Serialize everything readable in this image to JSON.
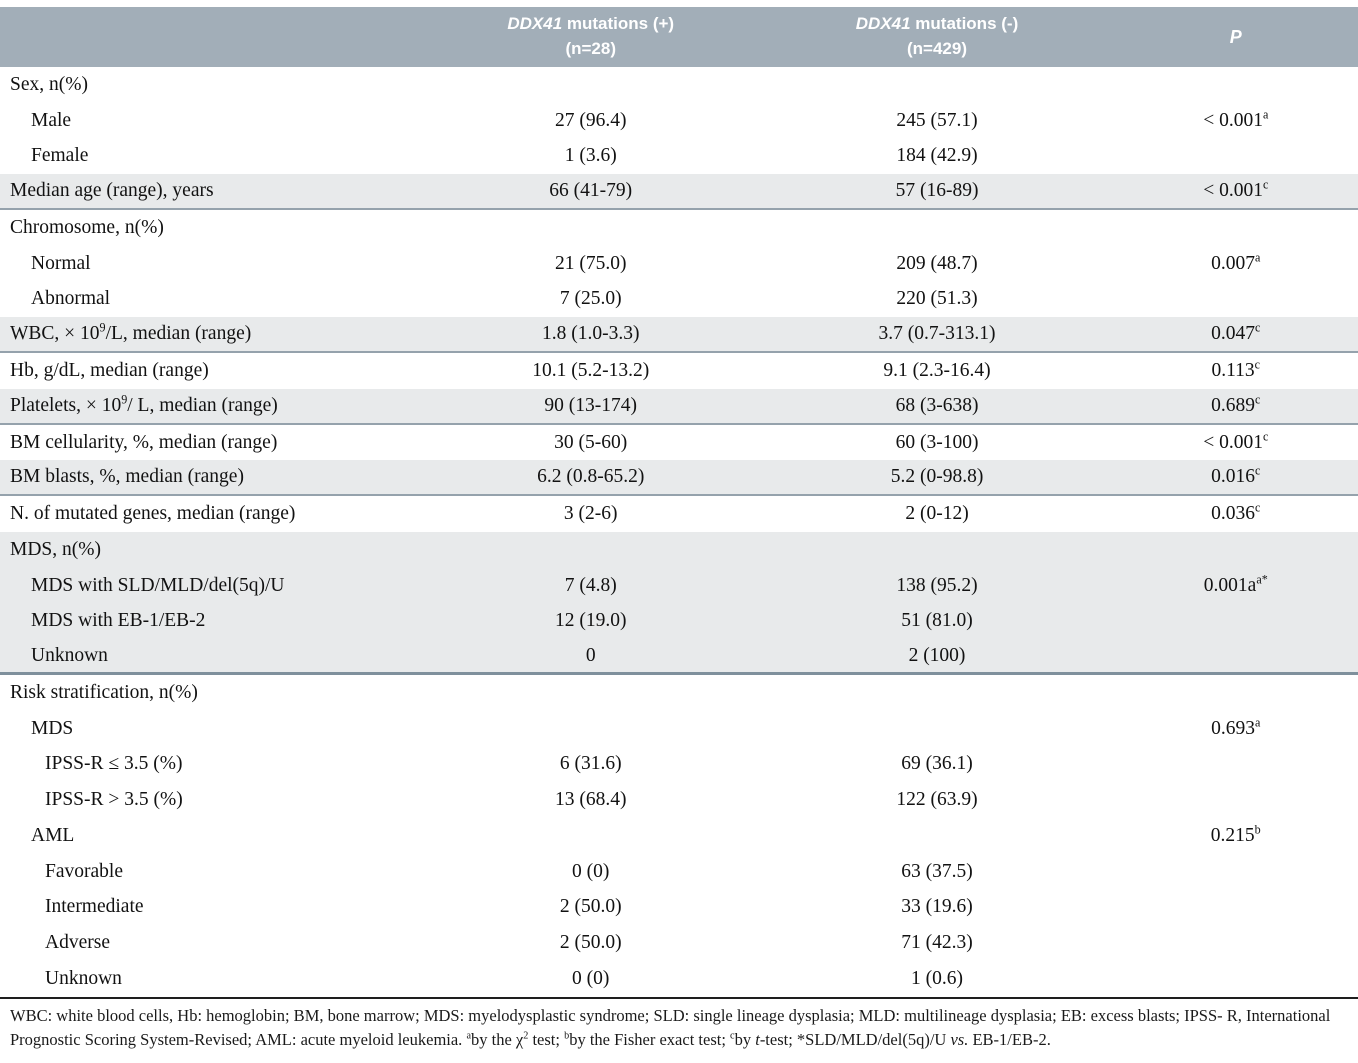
{
  "colors": {
    "header_bg": "#a2aeb8",
    "header_text": "#ffffff",
    "band_bg": "#e8eaeb",
    "band_border": "#95a2ac",
    "block_end_border": "#7f909c",
    "table_bottom_border": "#1e1e1e",
    "body_text": "#121212"
  },
  "header": {
    "col2": {
      "gene": "DDX41",
      "rest": " mutations (+)",
      "n": "(n=28)"
    },
    "col3": {
      "gene": "DDX41",
      "rest": " mutations (-)",
      "n": "(n=429)"
    },
    "p": "P"
  },
  "table": {
    "rows": [
      {
        "label": "Sex, n(%)",
        "indent": 0,
        "c1": "",
        "c2": "",
        "p": ""
      },
      {
        "label": "Male",
        "indent": 1,
        "c1": "27 (96.4)",
        "c2": "245 (57.1)",
        "p": "< 0.001",
        "p_sup": "a"
      },
      {
        "label": "Female",
        "indent": 1,
        "c1": "1 (3.6)",
        "c2": "184 (42.9)",
        "p": ""
      },
      {
        "label": "Median age (range), years",
        "indent": 0,
        "c1": "66 (41-79)",
        "c2": "57 (16-89)",
        "p": "< 0.001",
        "p_sup": "c",
        "shade": "band"
      },
      {
        "label": "Chromosome, n(%)",
        "indent": 0,
        "c1": "",
        "c2": "",
        "p": ""
      },
      {
        "label": "Normal",
        "indent": 1,
        "c1": "21 (75.0)",
        "c2": "209 (48.7)",
        "p": "0.007",
        "p_sup": "a"
      },
      {
        "label": "Abnormal",
        "indent": 1,
        "c1": "7 (25.0)",
        "c2": "220 (51.3)",
        "p": ""
      },
      {
        "label_pre": "WBC, × 10",
        "label_sup": "9",
        "label_post": "/L, median (range)",
        "indent": 0,
        "c1": "1.8 (1.0-3.3)",
        "c2": "3.7 (0.7-313.1)",
        "p": "0.047",
        "p_sup": "c",
        "shade": "band"
      },
      {
        "label": "Hb, g/dL, median (range)",
        "indent": 0,
        "c1": "10.1 (5.2-13.2)",
        "c2": "9.1 (2.3-16.4)",
        "p": "0.113",
        "p_sup": "c"
      },
      {
        "label_pre": "Platelets, × 10",
        "label_sup": "9",
        "label_post": "/ L, median (range)",
        "indent": 0,
        "c1": "90 (13-174)",
        "c2": "68 (3-638)",
        "p": "0.689",
        "p_sup": "c",
        "shade": "band"
      },
      {
        "label": "BM cellularity, %, median (range)",
        "indent": 0,
        "c1": "30 (5-60)",
        "c2": "60 (3-100)",
        "p": "< 0.001",
        "p_sup": "c"
      },
      {
        "label": "BM blasts, %, median (range)",
        "indent": 0,
        "c1": "6.2 (0.8-65.2)",
        "c2": "5.2 (0-98.8)",
        "p": "0.016",
        "p_sup": "c",
        "shade": "band"
      },
      {
        "label": "N. of mutated genes, median (range)",
        "indent": 0,
        "c1": "3 (2-6)",
        "c2": "2 (0-12)",
        "p": "0.036",
        "p_sup": "c"
      },
      {
        "label": "MDS, n(%)",
        "indent": 0,
        "c1": "",
        "c2": "",
        "p": "",
        "shade": "block"
      },
      {
        "label": "MDS with SLD/MLD/del(5q)/U",
        "indent": 1,
        "c1": "7 (4.8)",
        "c2": "138 (95.2)",
        "p": "0.001a",
        "p_sup": "a*",
        "shade": "block"
      },
      {
        "label": "MDS with EB-1/EB-2",
        "indent": 1,
        "c1": "12 (19.0)",
        "c2": "51 (81.0)",
        "p": "",
        "shade": "block"
      },
      {
        "label": "Unknown",
        "indent": 1,
        "c1": "0",
        "c2": "2 (100)",
        "p": "",
        "shade": "block",
        "block_end": true
      },
      {
        "label": "Risk stratification, n(%)",
        "indent": 0,
        "c1": "",
        "c2": "",
        "p": ""
      },
      {
        "label": "MDS",
        "indent": 1,
        "c1": "",
        "c2": "",
        "p": "0.693",
        "p_sup": "a"
      },
      {
        "label": "IPSS-R ≤ 3.5 (%)",
        "indent": 2,
        "c1": "6 (31.6)",
        "c2": "69 (36.1)",
        "p": ""
      },
      {
        "label": "IPSS-R > 3.5 (%)",
        "indent": 2,
        "c1": "13 (68.4)",
        "c2": "122 (63.9)",
        "p": ""
      },
      {
        "label": "AML",
        "indent": 1,
        "c1": "",
        "c2": "",
        "p": "0.215",
        "p_sup": "b"
      },
      {
        "label": "Favorable",
        "indent": 2,
        "c1": "0 (0)",
        "c2": "63 (37.5)",
        "p": ""
      },
      {
        "label": "Intermediate",
        "indent": 2,
        "c1": "2 (50.0)",
        "c2": "33 (19.6)",
        "p": ""
      },
      {
        "label": "Adverse",
        "indent": 2,
        "c1": "2 (50.0)",
        "c2": "71 (42.3)",
        "p": ""
      },
      {
        "label": "Unknown",
        "indent": 2,
        "c1": "0 (0)",
        "c2": "1 (0.6)",
        "p": ""
      }
    ]
  },
  "footnote": {
    "line1": "WBC: white blood cells, Hb: hemoglobin; BM, bone marrow; MDS: myelodysplastic syndrome; SLD: single lineage dysplasia; MLD: multilineage dysplasia; EB: excess blasts; IPSS-",
    "line2_segments": [
      {
        "t": "R, International Prognostic Scoring System-Revised; AML: acute myeloid leukemia. "
      },
      {
        "sup": "a"
      },
      {
        "t": "by the "
      },
      {
        "t": "χ"
      },
      {
        "sup": "2"
      },
      {
        "t": " test; "
      },
      {
        "sup": "b"
      },
      {
        "t": "by the Fisher exact test; "
      },
      {
        "sup": "c"
      },
      {
        "t": "by "
      },
      {
        "i": "t"
      },
      {
        "t": "-test; *SLD/MLD/del(5q)/U "
      },
      {
        "i": "vs."
      },
      {
        "t": " EB-1/EB-2."
      }
    ]
  }
}
